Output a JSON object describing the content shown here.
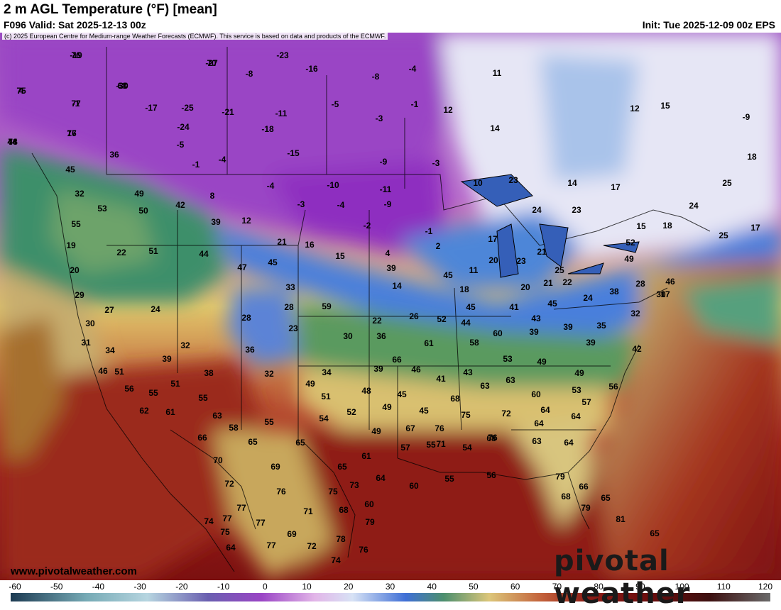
{
  "header": {
    "title": "2 m AGL Temperature (°F) [mean]",
    "valid": "F096 Valid: Sat 2025-12-13 00z",
    "init": "Init: Tue 2025-12-09 00z EPS"
  },
  "copyright": "(c) 2025 European Centre for Medium-range Weather Forecasts (ECMWF). This service is based on data and products of the ECMWF.",
  "watermark": "pivotal weather",
  "site_url": "www.pivotalweather.com",
  "colorbar": {
    "ticks": [
      "-60",
      "-50",
      "-40",
      "-30",
      "-20",
      "-10",
      "0",
      "10",
      "20",
      "30",
      "40",
      "50",
      "60",
      "70",
      "80",
      "90",
      "100",
      "110",
      "120"
    ]
  },
  "map_labels": [
    "-19",
    "4",
    "-30",
    "-1",
    "16",
    "44",
    "-27",
    "-23",
    "-16",
    "-8",
    "-4",
    "11",
    "-8",
    "-17",
    "-25",
    "-21",
    "-11",
    "-5",
    "-3",
    "-1",
    "12",
    "14",
    "12",
    "15",
    "-9",
    "-24",
    "-18",
    "-15",
    "-9",
    "-3",
    "36",
    "-5",
    "-1",
    "-4",
    "44",
    "45",
    "32",
    "49",
    "53",
    "50",
    "42",
    "8",
    "-4",
    "-10",
    "-11",
    "-9",
    "-3",
    "-4",
    "-2",
    "10",
    "23",
    "14",
    "17",
    "25",
    "24",
    "18",
    "55",
    "39",
    "12",
    "21",
    "16",
    "15",
    "4",
    "-1",
    "2",
    "17",
    "20",
    "23",
    "21",
    "24",
    "23",
    "15",
    "18",
    "25",
    "17",
    "19",
    "22",
    "51",
    "44",
    "47",
    "45",
    "33",
    "39",
    "45",
    "11",
    "14",
    "18",
    "20",
    "21",
    "25",
    "22",
    "52",
    "49",
    "46",
    "17",
    "24",
    "20",
    "29",
    "27",
    "24",
    "28",
    "59",
    "45",
    "41",
    "45",
    "38",
    "28",
    "30",
    "30",
    "28",
    "23",
    "22",
    "26",
    "52",
    "44",
    "43",
    "35",
    "32",
    "31",
    "34",
    "32",
    "30",
    "36",
    "61",
    "58",
    "60",
    "39",
    "39",
    "39",
    "42",
    "39",
    "38",
    "36",
    "32",
    "34",
    "39",
    "66",
    "46",
    "43",
    "53",
    "49",
    "49",
    "46",
    "51",
    "51",
    "49",
    "48",
    "45",
    "41",
    "63",
    "63",
    "60",
    "53",
    "56",
    "56",
    "55",
    "55",
    "51",
    "52",
    "49",
    "45",
    "68",
    "75",
    "72",
    "64",
    "57",
    "62",
    "61",
    "63",
    "58",
    "55",
    "54",
    "49",
    "67",
    "76",
    "71",
    "68",
    "64",
    "64",
    "66",
    "65",
    "65",
    "61",
    "57",
    "55",
    "54",
    "76",
    "63",
    "64",
    "70",
    "69",
    "65",
    "64",
    "60",
    "55",
    "56",
    "79",
    "66",
    "72",
    "76",
    "75",
    "73",
    "60",
    "68",
    "79",
    "65",
    "77",
    "77",
    "71",
    "68",
    "79",
    "81",
    "74",
    "75",
    "77",
    "69",
    "72",
    "78",
    "76",
    "65",
    "64",
    "77",
    "74",
    "76",
    "75",
    "68",
    "77",
    "77",
    "78",
    "70"
  ],
  "map_label_colors": [
    "#000000"
  ]
}
